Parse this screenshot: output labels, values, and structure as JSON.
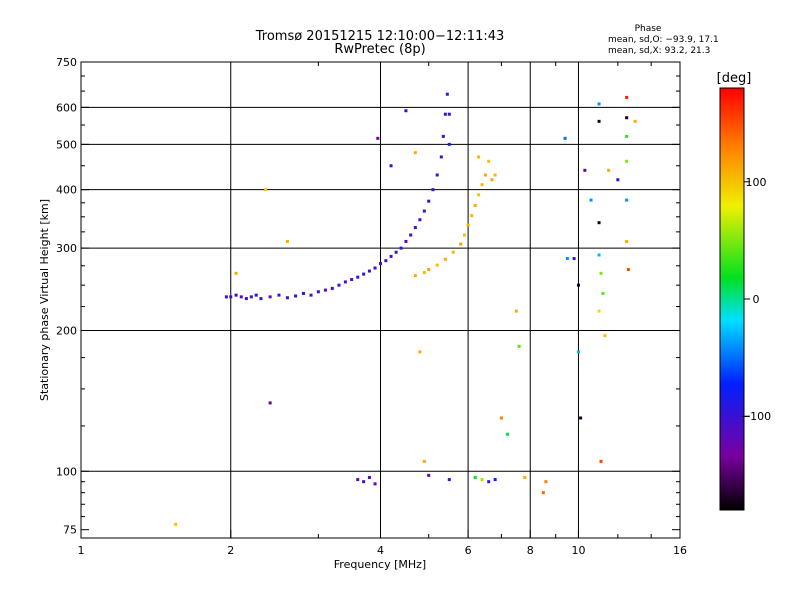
{
  "chart_data": {
    "type": "scatter",
    "title": "Tromsø 20151215 12:10:00−12:11:43",
    "subtitle": "RwPretec (8p)",
    "xlabel": "Frequency [MHz]",
    "ylabel": "Stationary phase Virtual Height [km]",
    "x_scale": "log2",
    "y_scale": "log",
    "xlim": [
      1,
      16
    ],
    "ylim": [
      72,
      750
    ],
    "x_ticks": [
      1,
      2,
      4,
      6,
      8,
      10,
      16
    ],
    "x_ticklabels": [
      "1",
      "2",
      "4",
      "6",
      "8",
      "10",
      "16"
    ],
    "y_ticks": [
      75,
      100,
      200,
      300,
      400,
      500,
      600,
      750
    ],
    "y_ticklabels": [
      "75",
      "100",
      "200",
      "300",
      "400",
      "500",
      "600",
      "750"
    ],
    "grid": true,
    "stats": {
      "heading": "Phase",
      "line_o": "mean, sd,O: −93.9, 17.1",
      "line_x": "mean, sd,X:  93.2, 21.3"
    },
    "colorbar": {
      "label": "[deg]",
      "range": [
        -180,
        180
      ],
      "ticks": [
        -100,
        0,
        100
      ],
      "ticklabels": [
        "−100",
        "0",
        "100"
      ],
      "colormap": "rainbow"
    },
    "series": [
      {
        "points": [
          [
            1.96,
            236,
            -100
          ],
          [
            2.0,
            236,
            -115
          ],
          [
            2.05,
            238,
            -95
          ],
          [
            2.1,
            236,
            -120
          ],
          [
            2.15,
            234,
            -100
          ],
          [
            2.2,
            236,
            -110
          ],
          [
            2.25,
            238,
            -90
          ],
          [
            2.3,
            234,
            -100
          ],
          [
            2.4,
            236,
            -120
          ],
          [
            2.5,
            238,
            -95
          ],
          [
            2.6,
            235,
            -110
          ],
          [
            2.7,
            237,
            -100
          ],
          [
            2.8,
            240,
            -105
          ],
          [
            2.9,
            238,
            -115
          ],
          [
            3.0,
            242,
            -100
          ],
          [
            3.1,
            244,
            -110
          ],
          [
            3.2,
            246,
            -90
          ],
          [
            3.3,
            250,
            -105
          ],
          [
            3.4,
            254,
            -100
          ],
          [
            3.5,
            257,
            -120
          ],
          [
            3.6,
            260,
            -100
          ],
          [
            3.7,
            264,
            -95
          ],
          [
            3.8,
            268,
            -110
          ],
          [
            3.9,
            272,
            -100
          ],
          [
            4.0,
            278,
            -105
          ],
          [
            4.1,
            282,
            -100
          ],
          [
            4.2,
            288,
            -110
          ],
          [
            4.3,
            294,
            -95
          ],
          [
            4.4,
            300,
            -100
          ],
          [
            4.5,
            310,
            -115
          ],
          [
            4.6,
            320,
            -100
          ],
          [
            4.7,
            332,
            -105
          ],
          [
            4.8,
            345,
            -110
          ],
          [
            4.9,
            360,
            -100
          ],
          [
            5.0,
            378,
            -95
          ],
          [
            5.1,
            400,
            -105
          ],
          [
            5.2,
            430,
            -110
          ],
          [
            5.3,
            470,
            -100
          ],
          [
            5.35,
            520,
            -105
          ],
          [
            5.4,
            580,
            -95
          ],
          [
            5.45,
            640,
            -110
          ],
          [
            5.5,
            580,
            -100
          ],
          [
            5.5,
            500,
            -80
          ]
        ]
      },
      {
        "points": [
          [
            4.7,
            262,
            110
          ],
          [
            4.9,
            266,
            105
          ],
          [
            5.0,
            270,
            115
          ],
          [
            5.2,
            276,
            100
          ],
          [
            5.4,
            284,
            110
          ],
          [
            5.6,
            294,
            105
          ],
          [
            5.8,
            306,
            115
          ],
          [
            5.9,
            320,
            100
          ],
          [
            6.0,
            336,
            110
          ],
          [
            6.1,
            352,
            105
          ],
          [
            6.2,
            370,
            110
          ],
          [
            6.3,
            390,
            100
          ],
          [
            6.4,
            410,
            105
          ],
          [
            6.5,
            430,
            110
          ],
          [
            6.6,
            460,
            100
          ],
          [
            6.7,
            420,
            112
          ],
          [
            6.8,
            430,
            105
          ],
          [
            4.7,
            480,
            110
          ],
          [
            6.3,
            470,
            105
          ]
        ]
      },
      {
        "points": [
          [
            1.55,
            77,
            100
          ],
          [
            2.05,
            265,
            110
          ],
          [
            2.35,
            400,
            95
          ],
          [
            2.6,
            310,
            110
          ],
          [
            2.4,
            140,
            -140
          ],
          [
            3.6,
            96,
            -120
          ],
          [
            3.7,
            95,
            -100
          ],
          [
            3.8,
            97,
            -110
          ],
          [
            3.9,
            94,
            -130
          ],
          [
            3.95,
            515,
            -130
          ],
          [
            4.2,
            450,
            -100
          ],
          [
            4.5,
            590,
            -100
          ],
          [
            4.8,
            180,
            110
          ],
          [
            4.9,
            105,
            110
          ],
          [
            5.0,
            98,
            -120
          ],
          [
            5.5,
            96,
            -90
          ],
          [
            6.2,
            97,
            20
          ],
          [
            6.4,
            96,
            60
          ],
          [
            6.6,
            95,
            -100
          ],
          [
            6.8,
            96,
            -80
          ],
          [
            7.0,
            130,
            130
          ],
          [
            7.2,
            120,
            10
          ],
          [
            7.5,
            220,
            110
          ],
          [
            7.6,
            185,
            40
          ],
          [
            7.8,
            97,
            110
          ],
          [
            8.5,
            90,
            140
          ],
          [
            8.6,
            95,
            130
          ],
          [
            9.4,
            515,
            -50
          ],
          [
            9.5,
            285,
            -40
          ],
          [
            9.8,
            285,
            -100
          ],
          [
            10.0,
            250,
            -170
          ],
          [
            10.0,
            180,
            -30
          ],
          [
            10.1,
            130,
            -170
          ],
          [
            10.3,
            440,
            -120
          ],
          [
            10.6,
            380,
            -40
          ],
          [
            11.0,
            610,
            -40
          ],
          [
            11.0,
            560,
            -170
          ],
          [
            11.0,
            290,
            -30
          ],
          [
            11.0,
            340,
            -170
          ],
          [
            11.1,
            265,
            50
          ],
          [
            11.2,
            240,
            40
          ],
          [
            11.0,
            220,
            90
          ],
          [
            11.3,
            195,
            100
          ],
          [
            11.1,
            105,
            155
          ],
          [
            11.5,
            440,
            110
          ],
          [
            12.5,
            630,
            170
          ],
          [
            12.5,
            570,
            -170
          ],
          [
            12.5,
            520,
            30
          ],
          [
            12.5,
            460,
            50
          ],
          [
            12.5,
            380,
            -40
          ],
          [
            12.5,
            310,
            110
          ],
          [
            12.6,
            270,
            150
          ],
          [
            13.0,
            560,
            110
          ],
          [
            12.0,
            420,
            -90
          ]
        ]
      }
    ]
  }
}
